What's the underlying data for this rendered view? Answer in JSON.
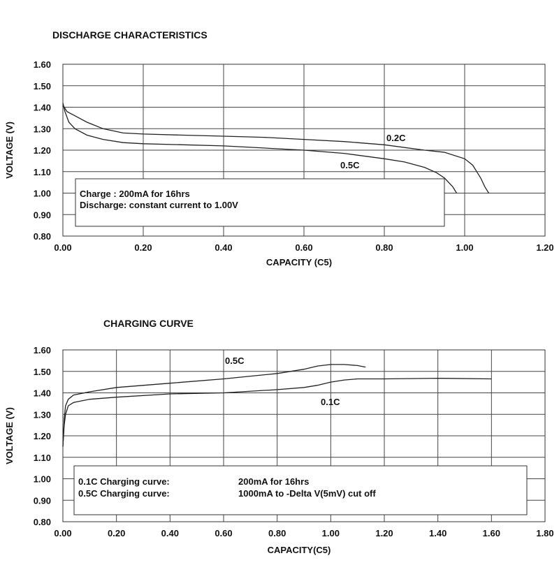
{
  "chart_data": [
    {
      "type": "line",
      "title": "DISCHARGE CHARACTERISTICS",
      "xlabel": "CAPACITY (C5)",
      "ylabel": "VOLTAGE (V)",
      "xlim": [
        0,
        1.2
      ],
      "ylim": [
        0.8,
        1.6
      ],
      "xticks": [
        "0.00",
        "0.20",
        "0.40",
        "0.60",
        "0.80",
        "1.00",
        "1.20"
      ],
      "yticks": [
        "0.80",
        "0.90",
        "1.00",
        "1.10",
        "1.20",
        "1.30",
        "1.40",
        "1.50",
        "1.60"
      ],
      "grid": true,
      "series": [
        {
          "name": "0.2C",
          "x": [
            0.0,
            0.01,
            0.03,
            0.06,
            0.1,
            0.15,
            0.2,
            0.3,
            0.4,
            0.5,
            0.6,
            0.7,
            0.8,
            0.9,
            0.95,
            1.0,
            1.02,
            1.03,
            1.04,
            1.05,
            1.06
          ],
          "y": [
            1.41,
            1.38,
            1.36,
            1.33,
            1.3,
            1.28,
            1.275,
            1.27,
            1.265,
            1.26,
            1.25,
            1.24,
            1.225,
            1.2,
            1.19,
            1.16,
            1.13,
            1.1,
            1.07,
            1.03,
            1.0
          ]
        },
        {
          "name": "0.5C",
          "x": [
            0.0,
            0.005,
            0.015,
            0.03,
            0.06,
            0.1,
            0.15,
            0.2,
            0.3,
            0.4,
            0.5,
            0.6,
            0.7,
            0.8,
            0.85,
            0.9,
            0.93,
            0.95,
            0.97,
            0.98
          ],
          "y": [
            1.42,
            1.38,
            1.33,
            1.3,
            1.27,
            1.25,
            1.235,
            1.23,
            1.225,
            1.22,
            1.21,
            1.2,
            1.185,
            1.16,
            1.145,
            1.12,
            1.095,
            1.07,
            1.03,
            1.0
          ]
        }
      ],
      "annotations": [
        "Charge : 200mA for 16hrs",
        "Discharge: constant current to 1.00V"
      ]
    },
    {
      "type": "line",
      "title": "CHARGING CURVE",
      "xlabel": "CAPACITY(C5)",
      "ylabel": "VOLTAGE (V)",
      "xlim": [
        0,
        1.8
      ],
      "ylim": [
        0.8,
        1.6
      ],
      "xticks": [
        "0.00",
        "0.20",
        "0.40",
        "0.60",
        "0.80",
        "1.00",
        "1.20",
        "1.40",
        "1.60",
        "1.80"
      ],
      "yticks": [
        "0.80",
        "0.90",
        "1.00",
        "1.10",
        "1.20",
        "1.30",
        "1.40",
        "1.50",
        "1.60"
      ],
      "grid": true,
      "series": [
        {
          "name": "0.5C",
          "x": [
            0.0,
            0.005,
            0.01,
            0.02,
            0.04,
            0.1,
            0.2,
            0.4,
            0.6,
            0.8,
            0.9,
            0.95,
            1.0,
            1.05,
            1.1,
            1.13
          ],
          "y": [
            1.15,
            1.28,
            1.34,
            1.37,
            1.39,
            1.405,
            1.425,
            1.445,
            1.465,
            1.49,
            1.51,
            1.525,
            1.532,
            1.532,
            1.527,
            1.52
          ]
        },
        {
          "name": "0.1C",
          "x": [
            0.0,
            0.005,
            0.01,
            0.02,
            0.04,
            0.1,
            0.2,
            0.4,
            0.6,
            0.8,
            0.9,
            0.95,
            1.0,
            1.05,
            1.1,
            1.2,
            1.4,
            1.6
          ],
          "y": [
            1.15,
            1.25,
            1.3,
            1.34,
            1.355,
            1.37,
            1.38,
            1.395,
            1.4,
            1.415,
            1.425,
            1.435,
            1.45,
            1.46,
            1.465,
            1.465,
            1.468,
            1.465
          ]
        }
      ],
      "annotations": [
        [
          "0.1C Charging curve:",
          "200mA for 16hrs"
        ],
        [
          "0.5C Charging curve:",
          "1000mA to -Delta V(5mV) cut off"
        ]
      ]
    }
  ]
}
